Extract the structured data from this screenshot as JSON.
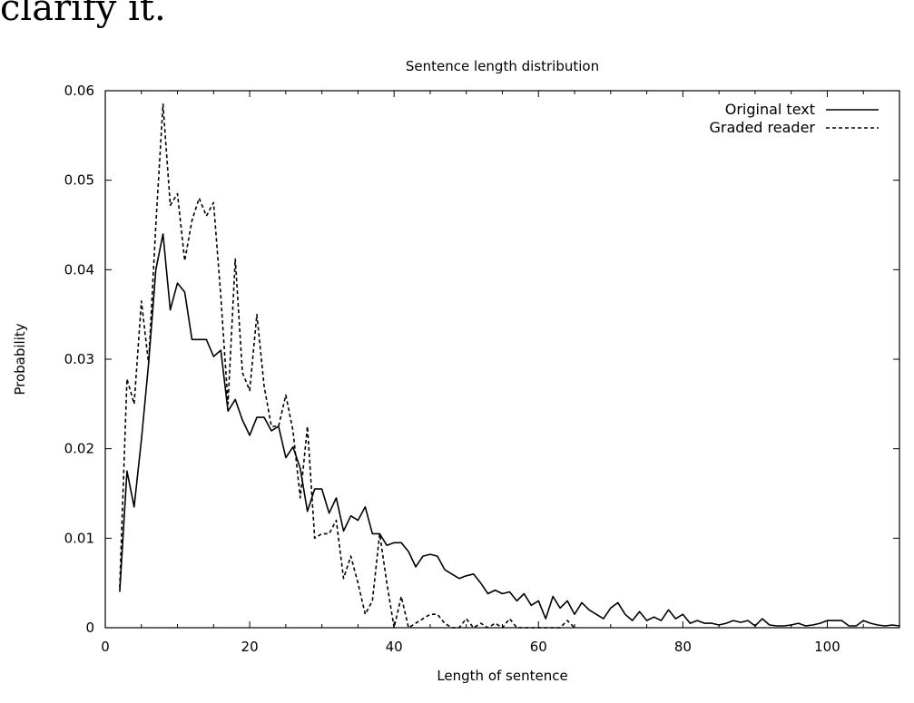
{
  "page": {
    "text_fragment": "clarify it."
  },
  "chart_data": {
    "type": "line",
    "title": "Sentence length distribution",
    "xlabel": "Length of sentence",
    "ylabel": "Probability",
    "xlim": [
      0,
      110
    ],
    "ylim": [
      0,
      0.06
    ],
    "xticks": [
      0,
      20,
      40,
      60,
      80,
      100
    ],
    "yticks": [
      0,
      0.01,
      0.02,
      0.03,
      0.04,
      0.05,
      0.06
    ],
    "ytick_labels": [
      "0",
      "0.01",
      "0.02",
      "0.03",
      "0.04",
      "0.05",
      "0.06"
    ],
    "legend_position": "top-right",
    "grid": false,
    "series": [
      {
        "name": "Original text",
        "style": "solid",
        "color": "#000000",
        "x": [
          2,
          3,
          4,
          5,
          6,
          7,
          8,
          9,
          10,
          11,
          12,
          13,
          14,
          15,
          16,
          17,
          18,
          19,
          20,
          21,
          22,
          23,
          24,
          25,
          26,
          27,
          28,
          29,
          30,
          31,
          32,
          33,
          34,
          35,
          36,
          37,
          38,
          39,
          40,
          41,
          42,
          43,
          44,
          45,
          46,
          47,
          48,
          49,
          50,
          51,
          52,
          53,
          54,
          55,
          56,
          57,
          58,
          59,
          60,
          61,
          62,
          63,
          64,
          65,
          66,
          67,
          68,
          69,
          70,
          71,
          72,
          73,
          74,
          75,
          76,
          77,
          78,
          79,
          80,
          81,
          82,
          83,
          84,
          85,
          86,
          87,
          88,
          89,
          90,
          91,
          92,
          93,
          94,
          95,
          96,
          97,
          98,
          99,
          100,
          101,
          102,
          103,
          104,
          105,
          106,
          107,
          108,
          109,
          110
        ],
        "y": [
          0.004,
          0.0175,
          0.0135,
          0.021,
          0.0295,
          0.04,
          0.044,
          0.0355,
          0.0385,
          0.0375,
          0.0322,
          0.0322,
          0.0322,
          0.0303,
          0.031,
          0.0242,
          0.0255,
          0.0232,
          0.0215,
          0.0235,
          0.0235,
          0.022,
          0.0225,
          0.019,
          0.0202,
          0.0178,
          0.013,
          0.0155,
          0.0155,
          0.0128,
          0.0145,
          0.0108,
          0.0125,
          0.012,
          0.0135,
          0.0105,
          0.0105,
          0.0092,
          0.0095,
          0.0095,
          0.0085,
          0.0068,
          0.008,
          0.0082,
          0.008,
          0.0065,
          0.006,
          0.0055,
          0.0058,
          0.006,
          0.005,
          0.0038,
          0.0042,
          0.0038,
          0.004,
          0.003,
          0.0038,
          0.0025,
          0.003,
          0.001,
          0.0035,
          0.0022,
          0.003,
          0.0015,
          0.0028,
          0.002,
          0.0015,
          0.001,
          0.0022,
          0.0028,
          0.0015,
          0.0008,
          0.0018,
          0.0008,
          0.0012,
          0.0008,
          0.002,
          0.001,
          0.0015,
          0.0005,
          0.0008,
          0.0005,
          0.0005,
          0.0003,
          0.0005,
          0.0008,
          0.0006,
          0.0008,
          0.0002,
          0.001,
          0.0003,
          0.0002,
          0.0002,
          0.0003,
          0.0005,
          0.0002,
          0.0003,
          0.0005,
          0.0008,
          0.0008,
          0.0008,
          0.0002,
          0.0002,
          0.0008,
          0.0005,
          0.0003,
          0.0002,
          0.0003,
          0.0002
        ]
      },
      {
        "name": "Graded reader",
        "style": "dashed",
        "color": "#000000",
        "x": [
          2,
          3,
          4,
          5,
          6,
          7,
          8,
          9,
          10,
          11,
          12,
          13,
          14,
          15,
          16,
          17,
          18,
          19,
          20,
          21,
          22,
          23,
          24,
          25,
          26,
          27,
          28,
          29,
          30,
          31,
          32,
          33,
          34,
          35,
          36,
          37,
          38,
          39,
          40,
          41,
          42,
          43,
          44,
          45,
          46,
          47,
          48,
          49,
          50,
          51,
          52,
          53,
          54,
          55,
          56,
          57,
          58,
          59,
          60,
          61,
          62,
          63,
          64,
          65
        ],
        "y": [
          0.0045,
          0.0278,
          0.025,
          0.0365,
          0.0295,
          0.045,
          0.0585,
          0.0472,
          0.0485,
          0.041,
          0.0455,
          0.048,
          0.046,
          0.0475,
          0.037,
          0.025,
          0.0412,
          0.0285,
          0.0265,
          0.035,
          0.027,
          0.0225,
          0.0225,
          0.026,
          0.022,
          0.0145,
          0.0225,
          0.01,
          0.0105,
          0.0105,
          0.012,
          0.0055,
          0.008,
          0.005,
          0.0015,
          0.003,
          0.0105,
          0.005,
          0.0,
          0.0035,
          0.0,
          0.0005,
          0.001,
          0.0015,
          0.0015,
          0.0005,
          0.0,
          0.0,
          0.001,
          0.0,
          0.0005,
          0.0,
          0.0005,
          0.0,
          0.001,
          0.0,
          0.0,
          0.0,
          0.0,
          0.0,
          0.0,
          0.0,
          0.0008,
          0.0
        ]
      }
    ]
  }
}
